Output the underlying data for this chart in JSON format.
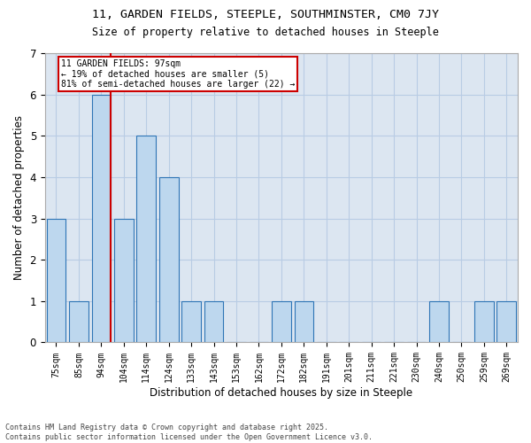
{
  "title1": "11, GARDEN FIELDS, STEEPLE, SOUTHMINSTER, CM0 7JY",
  "title2": "Size of property relative to detached houses in Steeple",
  "xlabel": "Distribution of detached houses by size in Steeple",
  "ylabel": "Number of detached properties",
  "categories": [
    "75sqm",
    "85sqm",
    "94sqm",
    "104sqm",
    "114sqm",
    "124sqm",
    "133sqm",
    "143sqm",
    "153sqm",
    "162sqm",
    "172sqm",
    "182sqm",
    "191sqm",
    "201sqm",
    "211sqm",
    "221sqm",
    "230sqm",
    "240sqm",
    "250sqm",
    "259sqm",
    "269sqm"
  ],
  "values": [
    3,
    1,
    6,
    3,
    5,
    4,
    1,
    1,
    0,
    0,
    1,
    1,
    0,
    0,
    0,
    0,
    0,
    1,
    0,
    1,
    1
  ],
  "bar_color": "#bdd7ee",
  "bar_edge_color": "#2e75b6",
  "red_line_index": 2,
  "annotation_lines": [
    "11 GARDEN FIELDS: 97sqm",
    "← 19% of detached houses are smaller (5)",
    "81% of semi-detached houses are larger (22) →"
  ],
  "annotation_box_color": "#ffffff",
  "annotation_box_edge": "#cc0000",
  "red_line_color": "#cc0000",
  "ylim": [
    0,
    7
  ],
  "yticks": [
    0,
    1,
    2,
    3,
    4,
    5,
    6,
    7
  ],
  "grid_color": "#b8cce4",
  "bg_color": "#dce6f1",
  "fig_bg_color": "#ffffff",
  "footnote": "Contains HM Land Registry data © Crown copyright and database right 2025.\nContains public sector information licensed under the Open Government Licence v3.0."
}
